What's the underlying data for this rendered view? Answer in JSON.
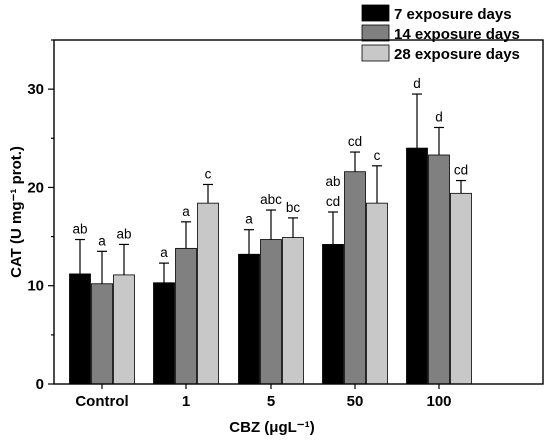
{
  "chart_data": {
    "type": "bar",
    "xlabel": "CBZ (μgL⁻¹)",
    "ylabel": "CAT (U mg⁻¹ prot.)",
    "ylim": [
      0,
      35
    ],
    "yticks": [
      0,
      10,
      20,
      30
    ],
    "categories": [
      "Control",
      "1",
      "5",
      "50",
      "100"
    ],
    "legend_position": "top-right",
    "grid": false,
    "series": [
      {
        "name": "7 exposure days",
        "color": "#000000",
        "values": [
          11.2,
          10.3,
          13.2,
          14.2,
          24.0
        ],
        "errors": [
          3.5,
          2.0,
          2.5,
          3.3,
          5.5
        ],
        "labels": [
          "ab",
          "a",
          "a",
          "ab\ncd",
          "d"
        ]
      },
      {
        "name": "14 exposure days",
        "color": "#808080",
        "values": [
          10.2,
          13.8,
          14.7,
          21.6,
          23.3
        ],
        "errors": [
          3.3,
          2.7,
          3.0,
          2.0,
          2.8
        ],
        "labels": [
          "a",
          "a",
          "abc",
          "cd",
          "d"
        ]
      },
      {
        "name": "28 exposure days",
        "color": "#c8c8c8",
        "values": [
          11.1,
          18.4,
          14.9,
          18.4,
          19.4
        ],
        "errors": [
          3.1,
          1.9,
          2.0,
          3.8,
          1.3
        ],
        "labels": [
          "ab",
          "c",
          "bc",
          "c",
          "cd"
        ]
      }
    ]
  }
}
